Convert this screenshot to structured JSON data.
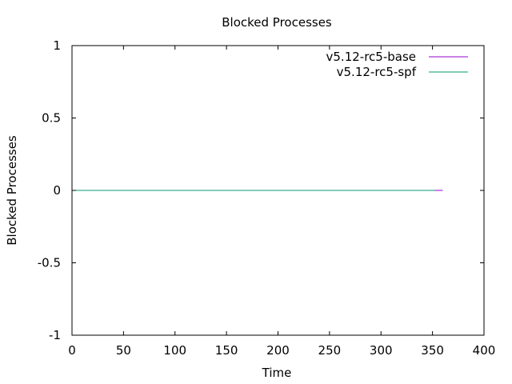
{
  "chart_data": {
    "type": "line",
    "title": "Blocked Processes",
    "xlabel": "Time",
    "ylabel": "Blocked Processes",
    "xlim": [
      0,
      400
    ],
    "ylim": [
      -1,
      1
    ],
    "x_ticks": [
      0,
      50,
      100,
      150,
      200,
      250,
      300,
      350,
      400
    ],
    "y_ticks": [
      -1,
      -0.5,
      0,
      0.5,
      1
    ],
    "x_tick_labels": [
      "0",
      "50",
      "100",
      "150",
      "200",
      "250",
      "300",
      "350",
      "400"
    ],
    "y_tick_labels": [
      "-1",
      "-0.5",
      "0",
      "0.5",
      "1"
    ],
    "grid": false,
    "legend_position": "top-right",
    "series": [
      {
        "name": "v5.12-rc5-base",
        "color": "#9400d3",
        "x": [
          0,
          360
        ],
        "y": [
          0,
          0
        ]
      },
      {
        "name": "v5.12-rc5-spf",
        "color": "#009e73",
        "x": [
          0,
          352
        ],
        "y": [
          0,
          0
        ]
      }
    ]
  }
}
